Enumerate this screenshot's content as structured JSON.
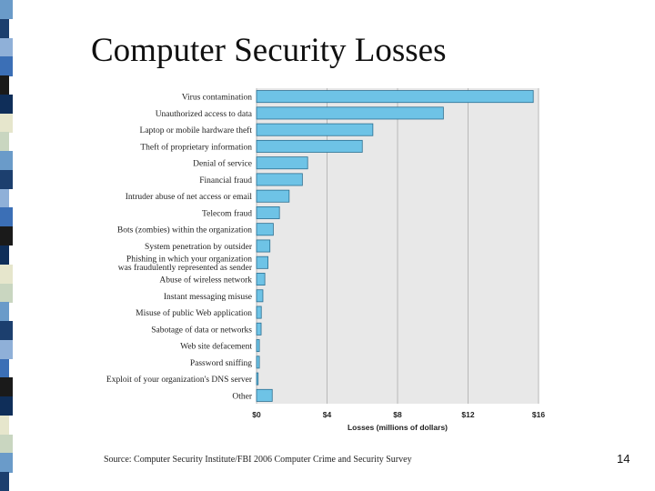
{
  "slide": {
    "title": "Computer Security Losses",
    "source": "Source: Computer Security Institute/FBI 2006 Computer Crime and Security Survey",
    "page_number": "14"
  },
  "colors": {
    "bar_fill": "#6ec3e6",
    "bar_stroke": "#2b6f91",
    "plot_bg": "#e8e8e8",
    "grid": "#b8b8b8",
    "strip": [
      "#1c3f6e",
      "#e6e6cc",
      "#3b6fb6",
      "#6a9bc9",
      "#0f2e59",
      "#8fb0d8",
      "#c9d6c0",
      "#1a1a1a"
    ]
  },
  "chart_data": {
    "type": "bar",
    "orientation": "horizontal",
    "xlabel": "Losses (millions of dollars)",
    "xlim": [
      0,
      16
    ],
    "xticks": [
      0,
      4,
      8,
      12,
      16
    ],
    "xtick_labels": [
      "$0",
      "$4",
      "$8",
      "$12",
      "$16"
    ],
    "grid": true,
    "categories": [
      [
        "Virus contamination"
      ],
      [
        "Unauthorized access to data"
      ],
      [
        "Laptop or mobile hardware theft"
      ],
      [
        "Theft of proprietary information"
      ],
      [
        "Denial of service"
      ],
      [
        "Financial fraud"
      ],
      [
        "Intruder abuse of net access or email"
      ],
      [
        "Telecom fraud"
      ],
      [
        "Bots (zombies) within the organization"
      ],
      [
        "System penetration by outsider"
      ],
      [
        "Phishing in which your organization",
        "was fraudulently represented as sender"
      ],
      [
        "Abuse of wireless network"
      ],
      [
        "Instant messaging misuse"
      ],
      [
        "Misuse of public Web application"
      ],
      [
        "Sabotage of data or networks"
      ],
      [
        "Web site defacement"
      ],
      [
        "Password sniffing"
      ],
      [
        "Exploit of your organization's DNS server"
      ],
      [
        "Other"
      ]
    ],
    "values": [
      15.7,
      10.6,
      6.6,
      6.0,
      2.9,
      2.6,
      1.85,
      1.3,
      0.95,
      0.76,
      0.65,
      0.47,
      0.36,
      0.27,
      0.26,
      0.16,
      0.16,
      0.09,
      0.89
    ]
  }
}
